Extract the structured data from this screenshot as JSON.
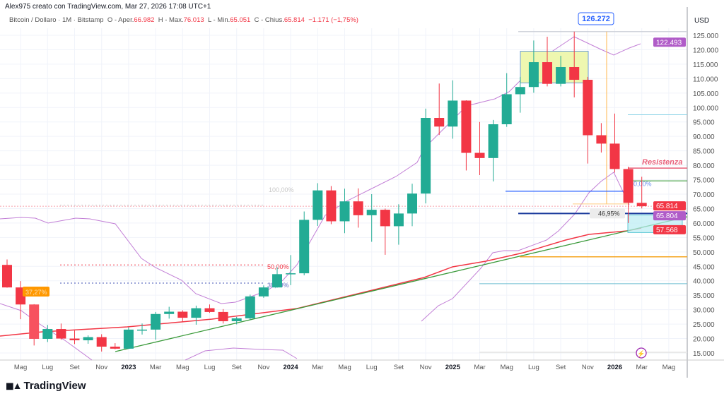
{
  "header": {
    "credit": "Alex975 creato con TradingView.com, Mar 27, 2026 17:08 UTC+1",
    "symbol": "Bitcoin / Dollaro · 1M · Bitstamp",
    "open_label": "O - Aper.",
    "open": "66.982",
    "high_label": "H - Max.",
    "high": "76.013",
    "low_label": "L - Min.",
    "low": "65.051",
    "close_label": "C - Chius.",
    "close": "65.814",
    "change": "−1.171 (−1,75%)"
  },
  "logo": {
    "text": "TradingView",
    "mark": "17"
  },
  "colors": {
    "up": "#22ab94",
    "down": "#f23645",
    "band": "#c27fd6",
    "ma": "#f23645",
    "trend": "#3b9a3b",
    "accent": "#2962ff"
  },
  "annotations": {
    "ath": "126.272",
    "resistance": "Resistenza",
    "fib_50_right": "50,00%",
    "fib_4695": "46,95%",
    "fib_100": "100,00%",
    "fib_50_left": "50,00%",
    "fib_382": "38,20%",
    "drop_pct": "37,27%"
  },
  "chart_data": {
    "type": "candlestick",
    "ylabel": "USD",
    "ylim": [
      12000,
      131000
    ],
    "yticks": [
      "125.000",
      "120.000",
      "115.000",
      "110.000",
      "105.000",
      "100.000",
      "95.000",
      "90.000",
      "85.000",
      "80.000",
      "75.000",
      "70.000",
      "65.000",
      "60.000",
      "55.000",
      "50.000",
      "45.000",
      "40.000",
      "35.000",
      "30.000",
      "25.000",
      "20.000",
      "15.000"
    ],
    "xticks": [
      {
        "label": "Mag",
        "month": 1
      },
      {
        "label": "Lug",
        "month": 3
      },
      {
        "label": "Set",
        "month": 5
      },
      {
        "label": "Nov",
        "month": 7
      },
      {
        "label": "2023",
        "month": 9,
        "bold": true
      },
      {
        "label": "Mar",
        "month": 11
      },
      {
        "label": "Mag",
        "month": 13
      },
      {
        "label": "Lug",
        "month": 15
      },
      {
        "label": "Set",
        "month": 17
      },
      {
        "label": "Nov",
        "month": 19
      },
      {
        "label": "2024",
        "month": 21,
        "bold": true
      },
      {
        "label": "Mar",
        "month": 23
      },
      {
        "label": "Mag",
        "month": 25
      },
      {
        "label": "Lug",
        "month": 27
      },
      {
        "label": "Set",
        "month": 29
      },
      {
        "label": "Nov",
        "month": 31
      },
      {
        "label": "2025",
        "month": 33,
        "bold": true
      },
      {
        "label": "Mar",
        "month": 35
      },
      {
        "label": "Mag",
        "month": 37
      },
      {
        "label": "Lug",
        "month": 39
      },
      {
        "label": "Set",
        "month": 41
      },
      {
        "label": "Nov",
        "month": 43
      },
      {
        "label": "2026",
        "month": 45,
        "bold": true
      },
      {
        "label": "Mar",
        "month": 47
      },
      {
        "label": "Mag",
        "month": 49
      }
    ],
    "first_month": "2022-04",
    "ohlc": [
      [
        45500,
        47400,
        37600,
        37700
      ],
      [
        37700,
        39900,
        26700,
        31800
      ],
      [
        31800,
        31900,
        17600,
        19900
      ],
      [
        19900,
        24700,
        18800,
        23300
      ],
      [
        23300,
        25200,
        19600,
        20000
      ],
      [
        20000,
        22800,
        18100,
        19400
      ],
      [
        19400,
        21100,
        18200,
        20500
      ],
      [
        20500,
        21500,
        15500,
        17200
      ],
      [
        17200,
        18400,
        16300,
        16500
      ],
      [
        16500,
        23900,
        16500,
        23100
      ],
      [
        23100,
        25200,
        21400,
        23100
      ],
      [
        23100,
        29200,
        19600,
        28500
      ],
      [
        28500,
        31000,
        26900,
        29300
      ],
      [
        29300,
        29800,
        25800,
        27200
      ],
      [
        27200,
        31400,
        24800,
        30500
      ],
      [
        30500,
        31800,
        28900,
        29200
      ],
      [
        29200,
        30200,
        25200,
        26000
      ],
      [
        26000,
        27500,
        24900,
        27000
      ],
      [
        27000,
        35200,
        26600,
        34600
      ],
      [
        34600,
        38400,
        34100,
        37700
      ],
      [
        37700,
        44700,
        37600,
        42300
      ],
      [
        42300,
        48900,
        38500,
        42600
      ],
      [
        42600,
        64000,
        41900,
        61100
      ],
      [
        61100,
        73800,
        59000,
        71300
      ],
      [
        71300,
        72800,
        59600,
        60600
      ],
      [
        60600,
        71900,
        56500,
        67500
      ],
      [
        67500,
        72000,
        58400,
        62700
      ],
      [
        62700,
        70000,
        53500,
        64600
      ],
      [
        64600,
        65000,
        49000,
        58900
      ],
      [
        58900,
        66500,
        52500,
        63300
      ],
      [
        63300,
        73600,
        58900,
        70200
      ],
      [
        70200,
        99600,
        66800,
        96400
      ],
      [
        96400,
        108300,
        90500,
        93400
      ],
      [
        93400,
        109400,
        89200,
        102400
      ],
      [
        102400,
        102500,
        78200,
        84300
      ],
      [
        84300,
        95000,
        76600,
        82500
      ],
      [
        82500,
        95700,
        74400,
        94200
      ],
      [
        94200,
        111900,
        93300,
        104600
      ],
      [
        104600,
        110600,
        98200,
        107100
      ],
      [
        107100,
        123200,
        105100,
        115700
      ],
      [
        115700,
        124500,
        107300,
        108200
      ],
      [
        108200,
        117900,
        107300,
        114000
      ],
      [
        114000,
        126272,
        103500,
        109600
      ],
      [
        109600,
        110600,
        80600,
        90400
      ],
      [
        90400,
        94600,
        84400,
        87500
      ],
      [
        87500,
        97900,
        77500,
        78700
      ],
      [
        78700,
        79500,
        60000,
        66982
      ],
      [
        66982,
        76013,
        65051,
        65814
      ]
    ],
    "price_tags": [
      {
        "value": "122.493",
        "price": 122493,
        "color": "#b05cc8"
      },
      {
        "value": "65.814",
        "price": 65814,
        "color": "#f23645"
      },
      {
        "value": "65.804",
        "price": 65804,
        "color": "#b05cc8"
      },
      {
        "value": "57.568",
        "price": 57568,
        "color": "#f23645"
      }
    ]
  }
}
